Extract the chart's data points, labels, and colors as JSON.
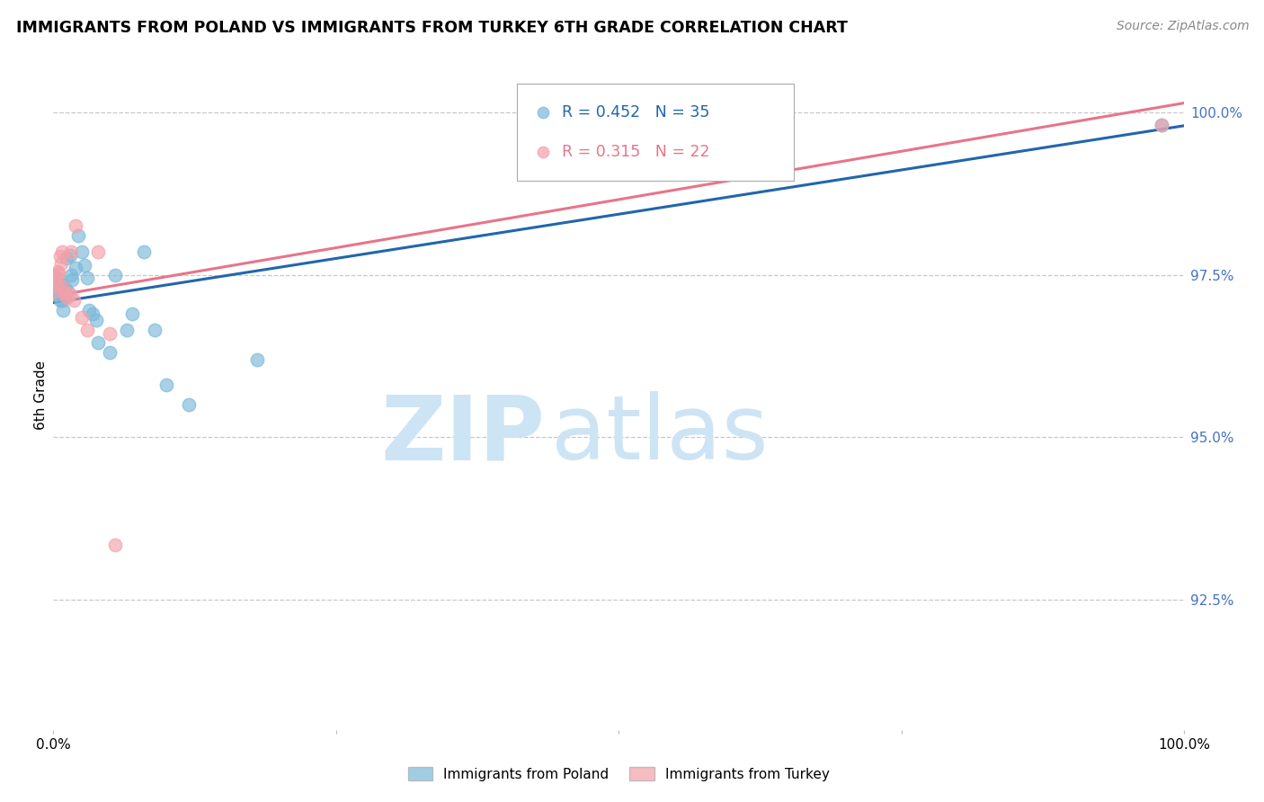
{
  "title": "IMMIGRANTS FROM POLAND VS IMMIGRANTS FROM TURKEY 6TH GRADE CORRELATION CHART",
  "source": "Source: ZipAtlas.com",
  "ylabel": "6th Grade",
  "right_yticks": [
    "100.0%",
    "97.5%",
    "95.0%",
    "92.5%"
  ],
  "right_ytick_vals": [
    1.0,
    0.975,
    0.95,
    0.925
  ],
  "xlim": [
    0.0,
    1.0
  ],
  "ylim": [
    0.905,
    1.008
  ],
  "legend_poland_r": "0.452",
  "legend_poland_n": "35",
  "legend_turkey_r": "0.315",
  "legend_turkey_n": "22",
  "poland_color": "#7ab8d9",
  "turkey_color": "#f4a0a8",
  "poland_line_color": "#2166ac",
  "turkey_line_color": "#e8748a",
  "watermark_zip": "ZIP",
  "watermark_atlas": "atlas",
  "watermark_color": "#cde4f5",
  "poland_x": [
    0.001,
    0.002,
    0.003,
    0.004,
    0.005,
    0.006,
    0.007,
    0.008,
    0.009,
    0.01,
    0.012,
    0.013,
    0.015,
    0.016,
    0.017,
    0.02,
    0.022,
    0.025,
    0.028,
    0.03,
    0.032,
    0.035,
    0.038,
    0.04,
    0.05,
    0.055,
    0.065,
    0.07,
    0.08,
    0.09,
    0.1,
    0.12,
    0.18,
    0.55,
    0.98
  ],
  "poland_y": [
    0.975,
    0.972,
    0.9735,
    0.9745,
    0.9725,
    0.971,
    0.9735,
    0.971,
    0.9695,
    0.973,
    0.9775,
    0.9725,
    0.978,
    0.975,
    0.9742,
    0.976,
    0.981,
    0.9785,
    0.9765,
    0.9745,
    0.9695,
    0.969,
    0.968,
    0.9645,
    0.963,
    0.975,
    0.9665,
    0.969,
    0.9785,
    0.9665,
    0.958,
    0.955,
    0.962,
    0.997,
    0.998
  ],
  "turkey_x": [
    0.001,
    0.002,
    0.003,
    0.004,
    0.005,
    0.006,
    0.007,
    0.008,
    0.009,
    0.01,
    0.012,
    0.015,
    0.016,
    0.018,
    0.02,
    0.025,
    0.03,
    0.04,
    0.05,
    0.055,
    0.55,
    0.98
  ],
  "turkey_y": [
    0.9725,
    0.9745,
    0.9735,
    0.9755,
    0.9752,
    0.9778,
    0.9768,
    0.9785,
    0.9732,
    0.9722,
    0.9715,
    0.972,
    0.9785,
    0.971,
    0.9825,
    0.9685,
    0.9665,
    0.9785,
    0.966,
    0.9335,
    0.997,
    0.998
  ]
}
